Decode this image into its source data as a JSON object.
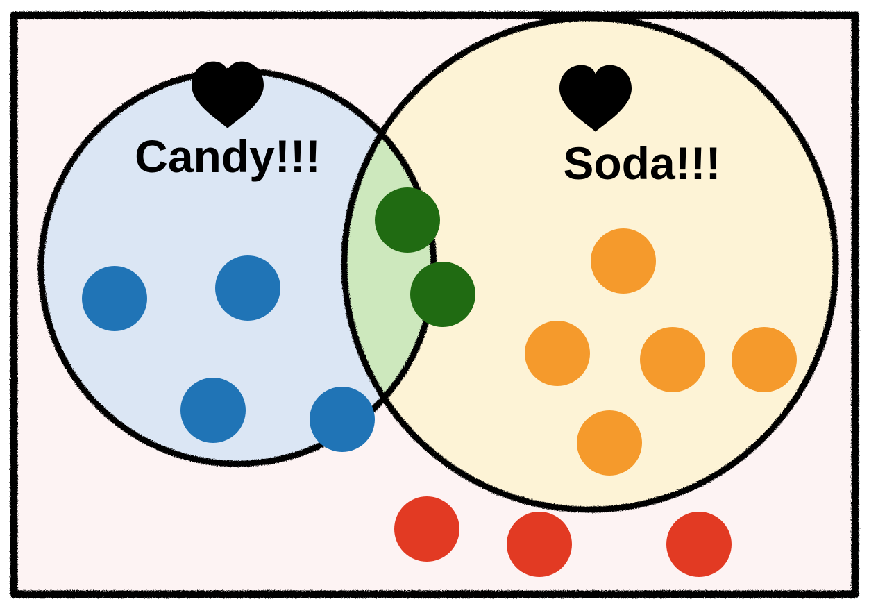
{
  "venn": {
    "sets": [
      {
        "label": "Candy!!!",
        "icon": "heart-icon",
        "fill": "#dbe6f4"
      },
      {
        "label": "Soda!!!",
        "icon": "heart-icon",
        "fill": "#fdf3d6"
      }
    ],
    "overlap_fill": "#cde8bd",
    "background_fill": "#fdf3f3",
    "outline_color": "#000000"
  },
  "dots": {
    "candy_only": {
      "count": 4,
      "color": "#2074b6"
    },
    "both": {
      "count": 2,
      "color": "#206b12"
    },
    "soda_only": {
      "count": 5,
      "color": "#f59a2c"
    },
    "neither": {
      "count": 3,
      "color": "#e23a23"
    }
  }
}
